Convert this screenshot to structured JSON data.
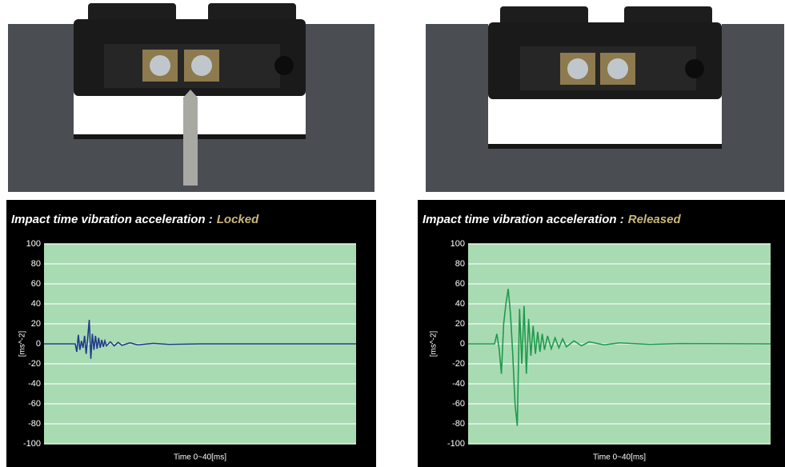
{
  "chart_data": [
    {
      "type": "line",
      "title": "Impact time vibration acceleration :",
      "title_status": "Locked",
      "ylabel": "[ms^-2]",
      "xlabel": "Time  0~40[ms]",
      "xlim": [
        0,
        40
      ],
      "ylim": [
        -100,
        100
      ],
      "yticks": [
        100,
        80,
        60,
        40,
        20,
        0,
        -20,
        -40,
        -60,
        -80,
        -100
      ],
      "grid": true,
      "color": "#1f3c8c",
      "x": [
        0,
        4.0,
        4.2,
        4.4,
        4.6,
        4.8,
        5.0,
        5.2,
        5.4,
        5.6,
        5.8,
        6.0,
        6.2,
        6.4,
        6.6,
        6.8,
        7.0,
        7.2,
        7.4,
        7.6,
        7.8,
        8.0,
        8.5,
        9.0,
        9.5,
        10,
        11,
        12,
        14,
        16,
        20,
        40
      ],
      "values": [
        0,
        0,
        -8,
        9,
        -6,
        3,
        -4,
        8,
        -10,
        6,
        24,
        -15,
        10,
        -6,
        8,
        -5,
        6,
        -4,
        4,
        -3,
        3,
        -2,
        2,
        -2,
        1.5,
        -1.5,
        1,
        -1,
        0.5,
        -0.5,
        0,
        0
      ]
    },
    {
      "type": "line",
      "title": "Impact time vibration acceleration :",
      "title_status": "Released",
      "ylabel": "[ms^-2]",
      "xlabel": "Time  0~40[ms]",
      "xlim": [
        0,
        40
      ],
      "ylim": [
        -100,
        100
      ],
      "yticks": [
        100,
        80,
        60,
        40,
        20,
        0,
        -20,
        -40,
        -60,
        -80,
        -100
      ],
      "grid": true,
      "color": "#1f9a4e",
      "x": [
        0,
        3.5,
        3.8,
        4.1,
        4.4,
        4.7,
        5.0,
        5.3,
        5.6,
        5.9,
        6.2,
        6.5,
        6.8,
        7.1,
        7.4,
        7.7,
        8.0,
        8.3,
        8.6,
        8.9,
        9.2,
        9.5,
        9.8,
        10.1,
        10.5,
        11,
        11.5,
        12,
        12.5,
        13,
        14,
        15,
        16,
        18,
        20,
        24,
        28,
        40
      ],
      "values": [
        0,
        0,
        10,
        -5,
        -30,
        20,
        40,
        55,
        30,
        -10,
        -60,
        -82,
        35,
        -20,
        38,
        -30,
        25,
        -12,
        18,
        -10,
        12,
        -8,
        10,
        -6,
        8,
        -5,
        6,
        -4,
        5,
        -3,
        3,
        -2,
        2,
        -1,
        1,
        -0.5,
        0.3,
        0
      ]
    }
  ]
}
